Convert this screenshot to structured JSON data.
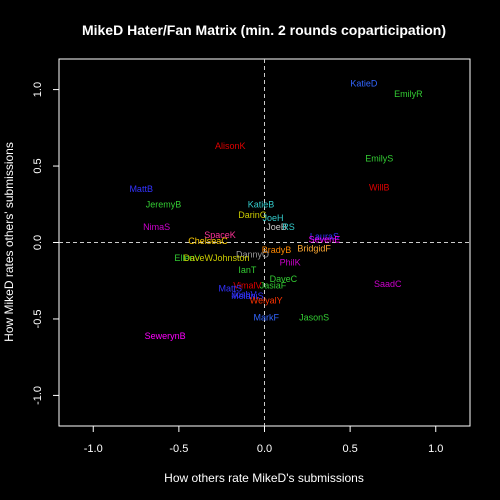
{
  "chart_data": {
    "type": "scatter",
    "title": "MikeD Hater/Fan Matrix (min. 2 rounds coparticipation)",
    "xlabel": "How others rate MikeD's submissions",
    "ylabel": "How MikeD rates others' submissions",
    "xlim": [
      -1.2,
      1.2
    ],
    "ylim": [
      -1.2,
      1.2
    ],
    "xticks": [
      -1.0,
      -0.5,
      0.0,
      0.5,
      1.0
    ],
    "yticks": [
      -1.0,
      -0.5,
      0.0,
      0.5,
      1.0
    ],
    "xtick_labels": [
      "-1.0",
      "-0.5",
      "0.0",
      "0.5",
      "1.0"
    ],
    "ytick_labels": [
      "-1.0",
      "-0.5",
      "0.0",
      "0.5",
      "1.0"
    ],
    "reference_lines": {
      "x": 0,
      "y": 0,
      "style": "dashed"
    },
    "points": [
      {
        "label": "KatieD",
        "x": 0.58,
        "y": 1.04,
        "color": "#3366ff"
      },
      {
        "label": "EmilyR",
        "x": 0.84,
        "y": 0.97,
        "color": "#33cc33"
      },
      {
        "label": "AlisonK",
        "x": -0.2,
        "y": 0.63,
        "color": "#e00000"
      },
      {
        "label": "EmilyS",
        "x": 0.67,
        "y": 0.55,
        "color": "#33cc33"
      },
      {
        "label": "WillB",
        "x": 0.67,
        "y": 0.36,
        "color": "#e00000"
      },
      {
        "label": "MattB",
        "x": -0.72,
        "y": 0.35,
        "color": "#3333ff"
      },
      {
        "label": "JeremyB",
        "x": -0.59,
        "y": 0.25,
        "color": "#33cc33"
      },
      {
        "label": "KatieB",
        "x": -0.02,
        "y": 0.25,
        "color": "#33cccc"
      },
      {
        "label": "DarinG",
        "x": -0.07,
        "y": 0.18,
        "color": "#cccc00"
      },
      {
        "label": "JoeH",
        "x": 0.05,
        "y": 0.16,
        "color": "#33cccc"
      },
      {
        "label": "JoeB",
        "x": 0.07,
        "y": 0.1,
        "color": "#cccccc"
      },
      {
        "label": "RS",
        "x": 0.14,
        "y": 0.1,
        "color": "#33cccc"
      },
      {
        "label": "NimaS",
        "x": -0.63,
        "y": 0.1,
        "color": "#cc00cc"
      },
      {
        "label": "LauraS",
        "x": 0.35,
        "y": 0.04,
        "color": "#3333ff"
      },
      {
        "label": "SpaceK",
        "x": -0.26,
        "y": 0.05,
        "color": "#ff3399"
      },
      {
        "label": "SevenE",
        "x": 0.35,
        "y": 0.02,
        "color": "#ff00ff"
      },
      {
        "label": "ChelseaC",
        "x": -0.33,
        "y": 0.01,
        "color": "#ffcc00"
      },
      {
        "label": "BridgidF",
        "x": 0.29,
        "y": -0.04,
        "color": "#ffaa33"
      },
      {
        "label": "BradyB",
        "x": 0.07,
        "y": -0.05,
        "color": "#ff8800"
      },
      {
        "label": "DannyO",
        "x": -0.07,
        "y": -0.08,
        "color": "#999999"
      },
      {
        "label": "EllenV",
        "x": -0.45,
        "y": -0.1,
        "color": "#33cc33"
      },
      {
        "label": "DaveWJohnston",
        "x": -0.28,
        "y": -0.1,
        "color": "#cccc00"
      },
      {
        "label": "PhilK",
        "x": 0.15,
        "y": -0.13,
        "color": "#cc00cc"
      },
      {
        "label": "IanT",
        "x": -0.1,
        "y": -0.18,
        "color": "#33cc33"
      },
      {
        "label": "DaveC",
        "x": 0.11,
        "y": -0.24,
        "color": "#33cc33"
      },
      {
        "label": "SaadC",
        "x": 0.72,
        "y": -0.27,
        "color": "#cc00cc"
      },
      {
        "label": "VimalV",
        "x": -0.1,
        "y": -0.28,
        "color": "#e00000"
      },
      {
        "label": "JasiaF",
        "x": 0.05,
        "y": -0.28,
        "color": "#33cc33"
      },
      {
        "label": "MattS",
        "x": -0.2,
        "y": -0.3,
        "color": "#3333ff"
      },
      {
        "label": "JoshV",
        "x": -0.12,
        "y": -0.34,
        "color": "#3333ff"
      },
      {
        "label": "MelaniS",
        "x": -0.1,
        "y": -0.35,
        "color": "#3333ff"
      },
      {
        "label": "WeiyalY",
        "x": 0.01,
        "y": -0.38,
        "color": "#ff3300"
      },
      {
        "label": "MarkF",
        "x": 0.01,
        "y": -0.49,
        "color": "#3366ff"
      },
      {
        "label": "JasonS",
        "x": 0.29,
        "y": -0.49,
        "color": "#33cc33"
      },
      {
        "label": "SewerynB",
        "x": -0.58,
        "y": -0.61,
        "color": "#ff00ff"
      }
    ]
  },
  "colors": {
    "background": "#000000",
    "foreground": "#ffffff",
    "reference_line": "#cccccc"
  }
}
